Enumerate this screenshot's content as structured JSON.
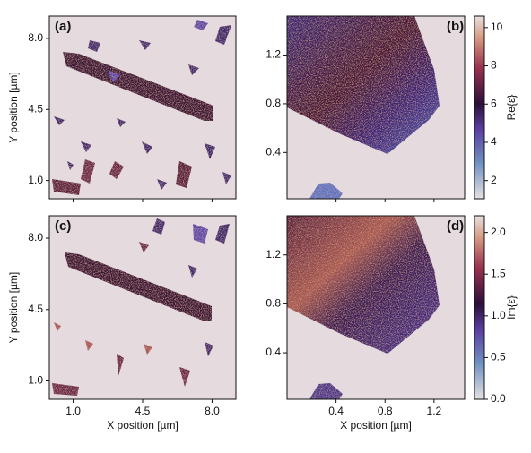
{
  "chart_data": [
    {
      "type": "image",
      "panel_label": "(a)",
      "y_label": "Y position [µm]",
      "xlim": [
        -0.2,
        9.2
      ],
      "xticks": [
        1,
        4.5,
        8
      ],
      "ylim": [
        0.1,
        9.1
      ],
      "yticks": [
        {
          "value": 1,
          "label": "1.0"
        },
        {
          "value": 4.5,
          "label": "4.5"
        },
        {
          "value": 8,
          "label": "8.0"
        }
      ]
    },
    {
      "type": "image",
      "panel_label": "(b)",
      "xlim": [
        0,
        1.45
      ],
      "xticks": [
        0.4,
        0.8,
        1.2
      ],
      "ylim": [
        0.02,
        1.52
      ],
      "yticks": [
        0.4,
        0.8,
        1.2
      ],
      "colorbar": {
        "label": "Re{ε}",
        "lim": [
          1.05,
          10.6
        ],
        "ticks": [
          2,
          4,
          6,
          8,
          10
        ]
      }
    },
    {
      "type": "image",
      "panel_label": "(c)",
      "x_label": "X position [µm]",
      "y_label": "Y position [µm]",
      "xlim": [
        -0.2,
        9.2
      ],
      "xticks": [
        {
          "value": 1,
          "label": "1.0"
        },
        {
          "value": 4.5,
          "label": "4.5"
        },
        {
          "value": 8,
          "label": "8.0"
        }
      ],
      "ylim": [
        0.1,
        9.1
      ],
      "yticks": [
        {
          "value": 1,
          "label": "1.0"
        },
        {
          "value": 4.5,
          "label": "4.5"
        },
        {
          "value": 8,
          "label": "8.0"
        }
      ]
    },
    {
      "type": "image",
      "panel_label": "(d)",
      "x_label": "X position [µm]",
      "xlim": [
        0,
        1.45
      ],
      "xticks": [
        0.4,
        0.8,
        1.2
      ],
      "ylim": [
        0.02,
        1.52
      ],
      "yticks": [
        0.4,
        0.8,
        1.2
      ],
      "colorbar": {
        "label": "Im{ε}",
        "lim": [
          0,
          2.2
        ],
        "ticks": [
          {
            "value": 0,
            "label": "0.0"
          },
          0.5,
          {
            "value": 1,
            "label": "1.0"
          },
          1.5,
          {
            "value": 2,
            "label": "2.0"
          }
        ]
      }
    }
  ]
}
